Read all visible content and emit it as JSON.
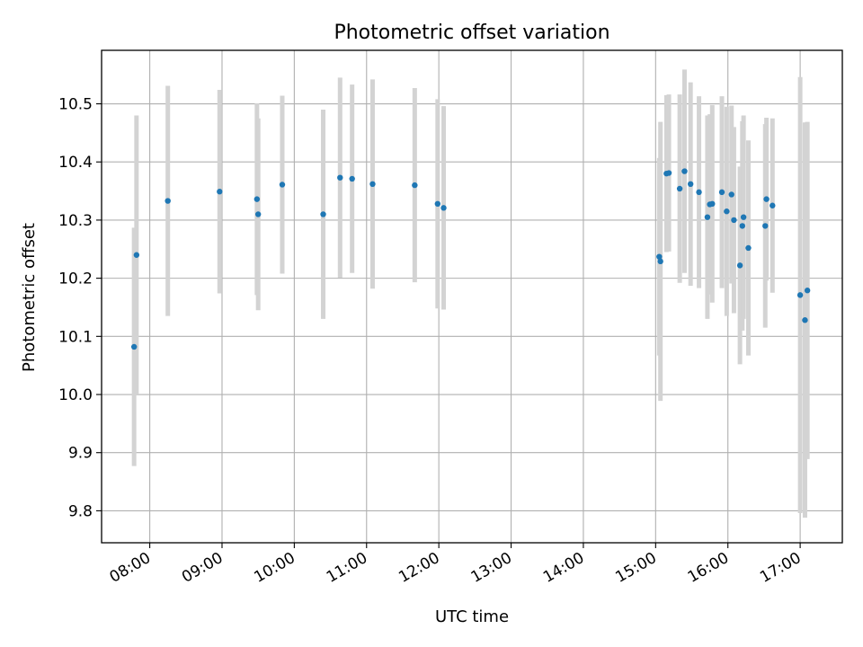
{
  "chart_data": {
    "type": "scatter",
    "title": "Photometric offset variation",
    "xlabel": "UTC time",
    "ylabel": "Photometric offset",
    "x_unit": "UTC hours",
    "xlim": [
      "07:20",
      "17:35"
    ],
    "ylim": [
      9.745,
      10.592
    ],
    "x_ticks": [
      "08:00",
      "09:00",
      "10:00",
      "11:00",
      "12:00",
      "13:00",
      "14:00",
      "15:00",
      "16:00",
      "17:00"
    ],
    "y_ticks": [
      9.8,
      9.9,
      10.0,
      10.1,
      10.2,
      10.3,
      10.4,
      10.5
    ],
    "grid": true,
    "marker_color": "#1f77b4",
    "errorbar_color": "#d3d3d3",
    "points": [
      {
        "time": "07:47",
        "y": 10.082,
        "yerr": 0.205
      },
      {
        "time": "07:49",
        "y": 10.24,
        "yerr": 0.24
      },
      {
        "time": "08:15",
        "y": 10.333,
        "yerr": 0.198
      },
      {
        "time": "08:58",
        "y": 10.349,
        "yerr": 0.175
      },
      {
        "time": "09:29",
        "y": 10.336,
        "yerr": 0.165
      },
      {
        "time": "09:30",
        "y": 10.31,
        "yerr": 0.165
      },
      {
        "time": "09:50",
        "y": 10.361,
        "yerr": 0.153
      },
      {
        "time": "10:24",
        "y": 10.31,
        "yerr": 0.18
      },
      {
        "time": "10:38",
        "y": 10.373,
        "yerr": 0.172
      },
      {
        "time": "10:48",
        "y": 10.371,
        "yerr": 0.162
      },
      {
        "time": "11:05",
        "y": 10.362,
        "yerr": 0.18
      },
      {
        "time": "11:40",
        "y": 10.36,
        "yerr": 0.167
      },
      {
        "time": "11:59",
        "y": 10.328,
        "yerr": 0.18
      },
      {
        "time": "12:04",
        "y": 10.321,
        "yerr": 0.175
      },
      {
        "time": "15:03",
        "y": 10.237,
        "yerr": 0.17
      },
      {
        "time": "15:04",
        "y": 10.229,
        "yerr": 0.24
      },
      {
        "time": "15:09",
        "y": 10.38,
        "yerr": 0.135
      },
      {
        "time": "15:11",
        "y": 10.381,
        "yerr": 0.135
      },
      {
        "time": "15:20",
        "y": 10.354,
        "yerr": 0.162
      },
      {
        "time": "15:24",
        "y": 10.384,
        "yerr": 0.175
      },
      {
        "time": "15:29",
        "y": 10.362,
        "yerr": 0.175
      },
      {
        "time": "15:36",
        "y": 10.348,
        "yerr": 0.165
      },
      {
        "time": "15:43",
        "y": 10.305,
        "yerr": 0.175
      },
      {
        "time": "15:45",
        "y": 10.327,
        "yerr": 0.155
      },
      {
        "time": "15:47",
        "y": 10.328,
        "yerr": 0.17
      },
      {
        "time": "15:55",
        "y": 10.348,
        "yerr": 0.165
      },
      {
        "time": "15:59",
        "y": 10.315,
        "yerr": 0.18
      },
      {
        "time": "16:03",
        "y": 10.344,
        "yerr": 0.153
      },
      {
        "time": "16:05",
        "y": 10.3,
        "yerr": 0.16
      },
      {
        "time": "16:10",
        "y": 10.222,
        "yerr": 0.17
      },
      {
        "time": "16:12",
        "y": 10.29,
        "yerr": 0.18
      },
      {
        "time": "16:13",
        "y": 10.305,
        "yerr": 0.175
      },
      {
        "time": "16:17",
        "y": 10.252,
        "yerr": 0.185
      },
      {
        "time": "16:31",
        "y": 10.29,
        "yerr": 0.175
      },
      {
        "time": "16:32",
        "y": 10.336,
        "yerr": 0.14
      },
      {
        "time": "16:37",
        "y": 10.325,
        "yerr": 0.15
      },
      {
        "time": "17:00",
        "y": 10.171,
        "yerr": 0.375
      },
      {
        "time": "17:04",
        "y": 10.128,
        "yerr": 0.34
      },
      {
        "time": "17:06",
        "y": 10.179,
        "yerr": 0.29
      }
    ]
  }
}
